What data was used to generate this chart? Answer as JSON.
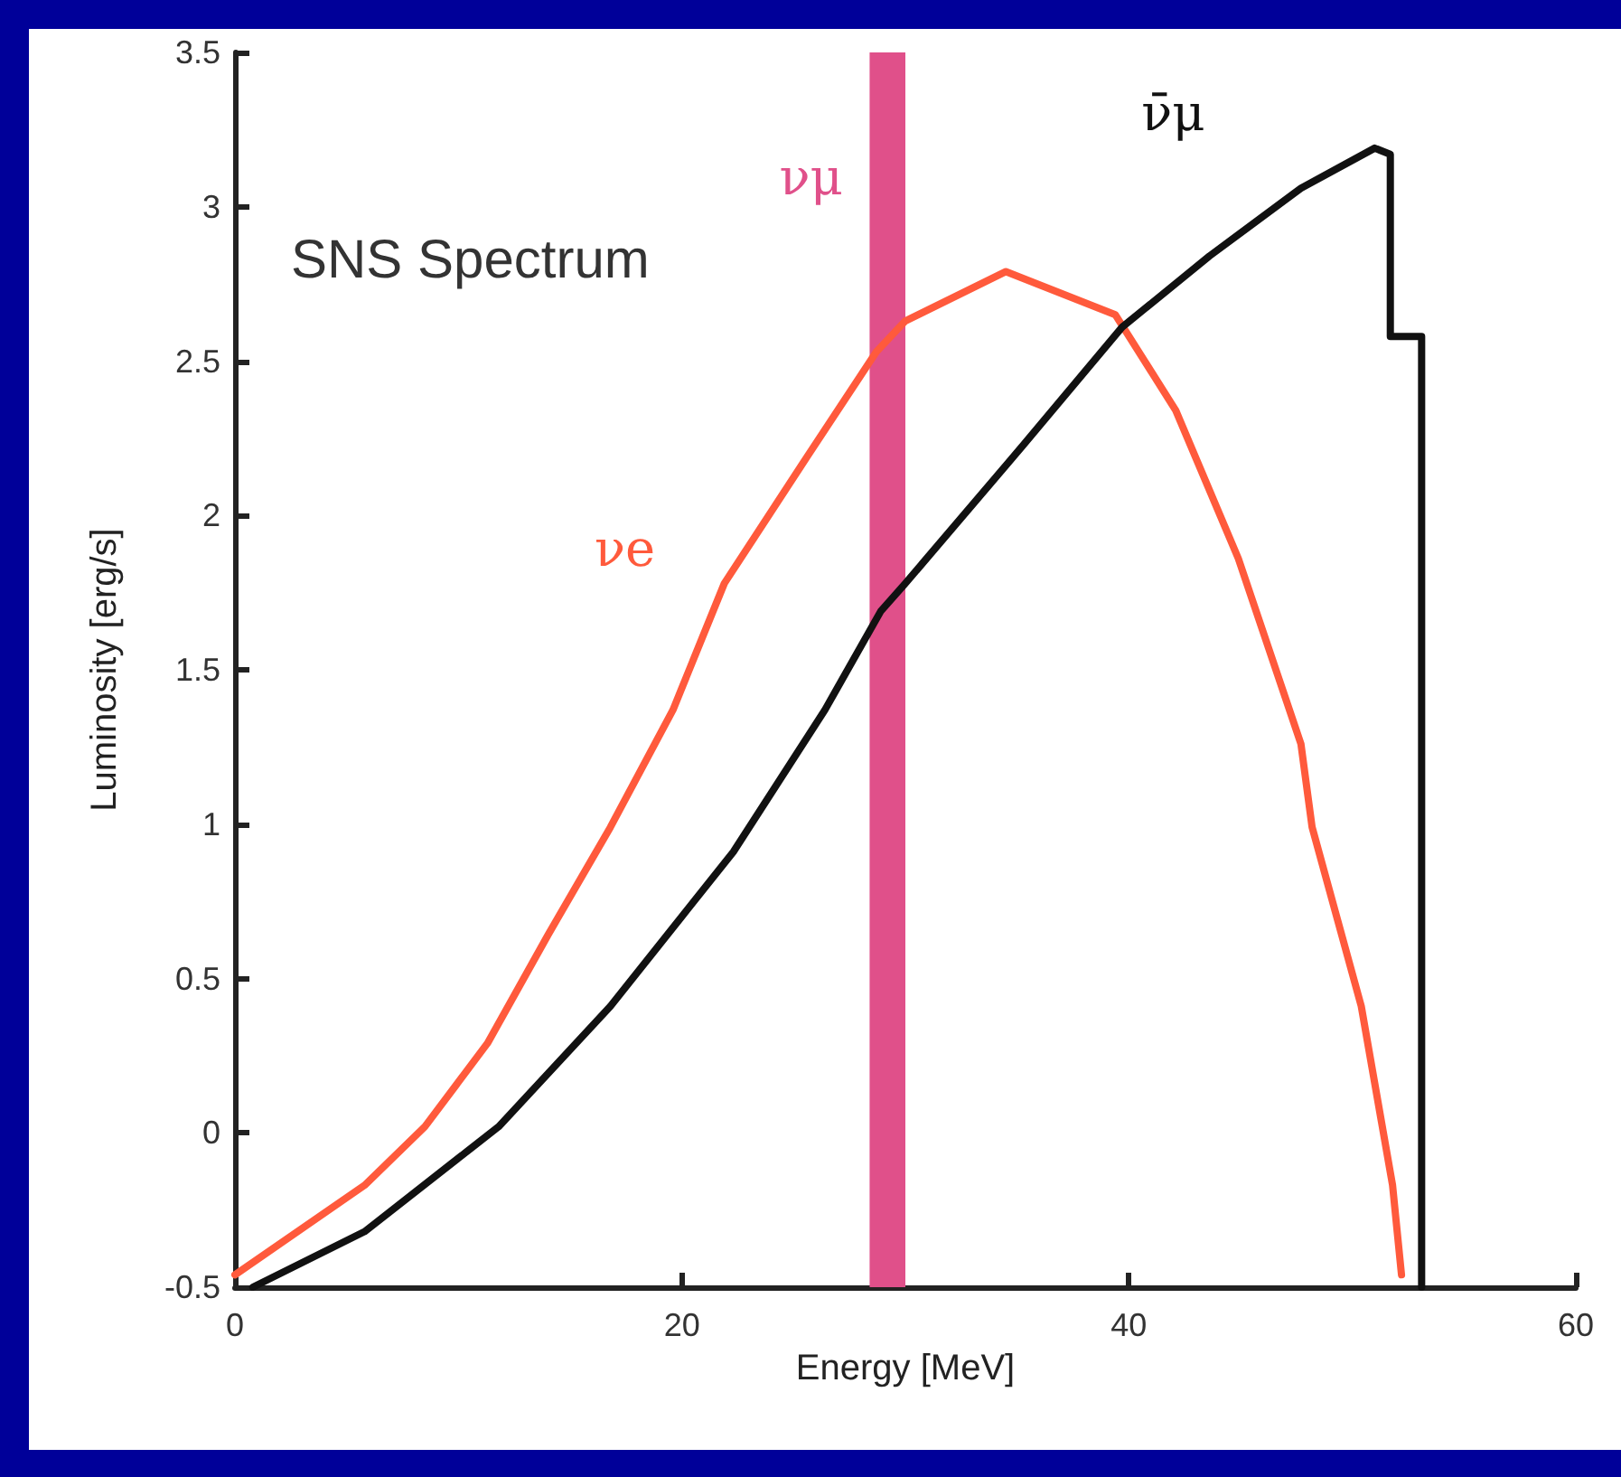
{
  "chart_data": {
    "type": "line",
    "title": "SNS Spectrum",
    "xlabel": "Energy [MeV]",
    "ylabel": "Luminosity [erg/s]",
    "xlim": [
      0,
      60
    ],
    "xticks": [
      0,
      20,
      40,
      60
    ],
    "ylim": [
      -0.5,
      3.5
    ],
    "yticks": [
      -0.5,
      0,
      0.5,
      1,
      1.5,
      2,
      2.5,
      3,
      3.5
    ],
    "grid": false,
    "legend": false,
    "marker": "none",
    "line_style": "solid",
    "series": [
      {
        "name": "νe",
        "color": "#ff5a3c",
        "x": [
          0,
          5.8,
          8.5,
          11.3,
          14,
          16.8,
          19.6,
          21.9,
          25.6,
          28.7,
          30,
          34.5,
          39.4,
          42.1,
          44.9,
          47.7,
          48.2,
          50.4,
          51.8,
          52.2
        ],
        "values": [
          -0.46,
          -0.17,
          0.02,
          0.29,
          0.64,
          0.99,
          1.37,
          1.78,
          2.19,
          2.53,
          2.63,
          2.79,
          2.65,
          2.34,
          1.86,
          1.26,
          0.99,
          0.41,
          -0.17,
          -0.46
        ]
      },
      {
        "name": "ν̄μ",
        "color": "#111111",
        "x": [
          0.8,
          5.8,
          11.8,
          16.8,
          22.3,
          26.4,
          28.9,
          30,
          35.3,
          39.7,
          43.6,
          47.7,
          51,
          51.7,
          51.7,
          53.1,
          53.1
        ],
        "values": [
          -0.5,
          -0.32,
          0.02,
          0.41,
          0.91,
          1.37,
          1.69,
          1.78,
          2.23,
          2.61,
          2.84,
          3.06,
          3.19,
          3.17,
          2.58,
          2.58,
          -0.5
        ]
      }
    ],
    "bands": [
      {
        "axis": "x",
        "from": 28.4,
        "to": 30,
        "label": "νμ",
        "color": "#e0508a"
      }
    ]
  }
}
